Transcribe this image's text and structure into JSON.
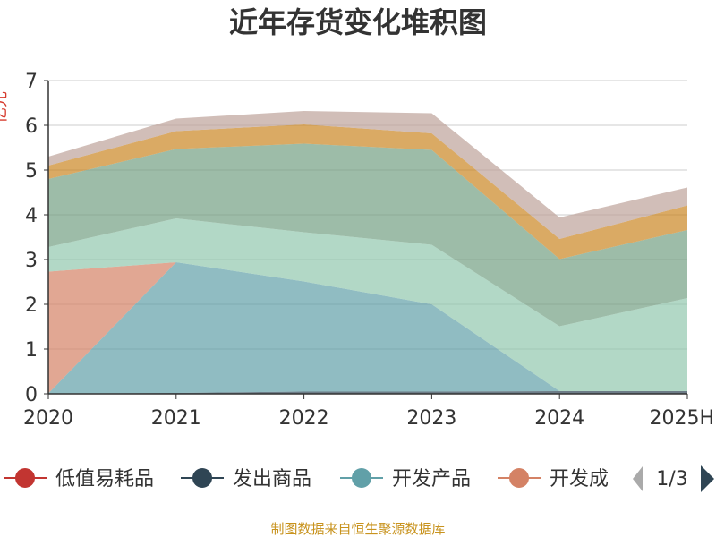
{
  "chart_data": {
    "type": "area",
    "stacked": true,
    "title": "近年存货变化堆积图",
    "ylabel": "亿元",
    "categories": [
      "2020",
      "2021",
      "2022",
      "2023",
      "2024",
      "2025H"
    ],
    "ylim": [
      0,
      7
    ],
    "yticks": [
      0,
      1,
      2,
      3,
      4,
      5,
      6,
      7
    ],
    "grid": true,
    "series": [
      {
        "name": "低值易耗品",
        "color": "#c23531",
        "values": [
          0,
          0,
          0,
          0,
          0,
          0
        ]
      },
      {
        "name": "发出商品",
        "color": "#2f4554",
        "values": [
          0.01,
          0.02,
          0.05,
          0.05,
          0.06,
          0.06
        ]
      },
      {
        "name": "开发产品",
        "color": "#61a0a8",
        "values": [
          0,
          2.92,
          2.46,
          1.95,
          0,
          0
        ]
      },
      {
        "name": "开发成本",
        "color": "#d48265",
        "values": [
          2.72,
          0,
          0,
          0,
          0,
          0
        ]
      },
      {
        "name": "",
        "color": "#91c7ae",
        "values": [
          0.55,
          0.98,
          1.1,
          1.33,
          1.45,
          2.08
        ]
      },
      {
        "name": "",
        "color": "#749f83",
        "values": [
          1.52,
          1.55,
          1.98,
          2.12,
          1.5,
          1.52
        ]
      },
      {
        "name": "",
        "color": "#ca8622",
        "values": [
          0.3,
          0.4,
          0.43,
          0.37,
          0.45,
          0.55
        ]
      },
      {
        "name": "",
        "color": "#bda29a",
        "values": [
          0.2,
          0.28,
          0.3,
          0.45,
          0.48,
          0.4
        ]
      }
    ],
    "legend": {
      "placement": "bottom",
      "visible_items": [
        "低值易耗品",
        "发出商品",
        "开发产品",
        "开发成"
      ],
      "page": "1/3"
    },
    "source": "制图数据来自恒生聚源数据库"
  }
}
